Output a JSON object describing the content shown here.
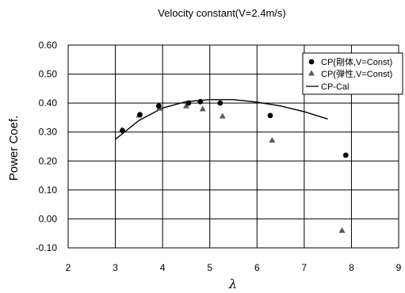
{
  "chart_data": {
    "type": "scatter",
    "title": "Velocity constant(V=2.4m/s)",
    "xlabel": "λ",
    "ylabel": "Power Coef.",
    "xlim": [
      2,
      9
    ],
    "ylim": [
      -0.1,
      0.6
    ],
    "x_ticks": [
      "2",
      "3",
      "4",
      "5",
      "6",
      "7",
      "8",
      "9"
    ],
    "y_ticks": [
      "0.60",
      "0.50",
      "0.40",
      "0.30",
      "0.20",
      "0.10",
      "0.00",
      "-0.10"
    ],
    "grid": true,
    "legend_position": "top-right",
    "series": [
      {
        "name": "CP(剛体,V=Const)",
        "marker": "circle",
        "color": "#000000",
        "points": [
          [
            3.15,
            0.305
          ],
          [
            3.52,
            0.36
          ],
          [
            3.92,
            0.39
          ],
          [
            4.55,
            0.4
          ],
          [
            4.8,
            0.405
          ],
          [
            5.22,
            0.4
          ],
          [
            6.28,
            0.357
          ],
          [
            7.88,
            0.22
          ]
        ]
      },
      {
        "name": "CP(弾性,V=Const)",
        "marker": "triangle",
        "color": "#595959",
        "points": [
          [
            3.14,
            0.308
          ],
          [
            3.5,
            0.358
          ],
          [
            3.93,
            0.382
          ],
          [
            4.5,
            0.39
          ],
          [
            4.85,
            0.38
          ],
          [
            5.27,
            0.355
          ],
          [
            6.32,
            0.272
          ],
          [
            7.8,
            -0.04
          ]
        ]
      },
      {
        "name": "CP-Cal",
        "marker": "line",
        "color": "#000000",
        "points": [
          [
            3.0,
            0.275
          ],
          [
            3.5,
            0.34
          ],
          [
            4.0,
            0.383
          ],
          [
            4.5,
            0.405
          ],
          [
            5.0,
            0.412
          ],
          [
            5.5,
            0.412
          ],
          [
            6.0,
            0.403
          ],
          [
            6.5,
            0.39
          ],
          [
            7.0,
            0.37
          ],
          [
            7.5,
            0.345
          ]
        ]
      }
    ]
  }
}
